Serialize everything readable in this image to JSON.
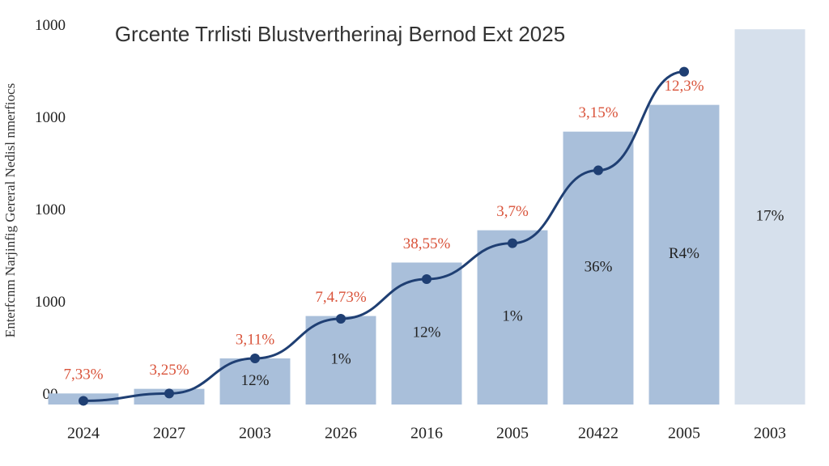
{
  "chart_data": {
    "type": "bar",
    "title": "Grcente Trrlisti Blustvertherinaj Bernod Ext 2025",
    "y_label": "Enterfcnm Narjinfig Gereral Nedisl nmerfiocs",
    "categories": [
      "2024",
      "2027",
      "2003",
      "2026",
      "2016",
      "2005",
      "20422",
      "2005",
      "2003"
    ],
    "values": [
      0.02,
      0.07,
      0.4,
      0.86,
      1.44,
      1.79,
      2.86,
      3.15,
      3.97
    ],
    "bar_colors": [
      "#a9bfda",
      "#a9bfda",
      "#a9bfda",
      "#a9bfda",
      "#a9bfda",
      "#a9bfda",
      "#a9bfda",
      "#a9bfda",
      "#d6e0ec"
    ],
    "line": {
      "color": "#1f3f73",
      "values": [
        -0.06,
        0.02,
        0.4,
        0.83,
        1.26,
        1.65,
        2.44,
        3.51,
        null
      ]
    },
    "top_labels": [
      "7,33%",
      "3,25%",
      "3,11%",
      "7,4.73%",
      "38,55%",
      "3,7%",
      "3,15%",
      "12,3%",
      null
    ],
    "bar_labels": [
      null,
      null,
      "12%",
      "1%",
      "12%",
      "1%",
      "36%",
      "R4%",
      "17%"
    ],
    "ylim": [
      -0.1,
      4.2
    ],
    "yticks": [
      {
        "value": 0,
        "label": "00"
      },
      {
        "value": 1,
        "label": "1000"
      },
      {
        "value": 2,
        "label": "1000"
      },
      {
        "value": 3,
        "label": "1000"
      },
      {
        "value": 4,
        "label": "1000"
      }
    ]
  }
}
